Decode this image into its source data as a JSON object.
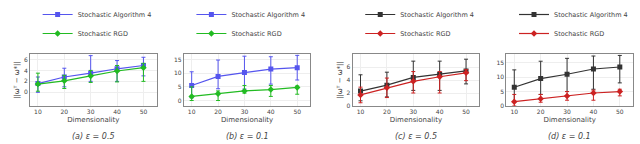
{
  "chart_data": [
    {
      "type": "line",
      "title": "(a) ε = 0.5",
      "xlabel": "Dimensionality",
      "ylabel": "||ωᵀ − ω*||",
      "x": [
        10,
        20,
        30,
        40,
        50
      ],
      "xlim": [
        7,
        55
      ],
      "xticks": [
        10,
        20,
        30,
        40,
        50
      ],
      "ylim": [
        -2.5,
        7
      ],
      "yticks": [
        0,
        2,
        4,
        6
      ],
      "grid": true,
      "legend": "top",
      "series": [
        {
          "name": "Stochastic Algorithm 4",
          "color": "#5555ee",
          "marker": "square",
          "values": [
            1.6,
            2.8,
            3.5,
            4.3,
            4.9
          ],
          "error_minus": [
            1.6,
            1.8,
            1.5,
            2.3,
            1.9
          ],
          "error_plus": [
            1.2,
            1.6,
            3.2,
            1.5,
            1.5
          ]
        },
        {
          "name": "Stochastic RGD",
          "color": "#22bb22",
          "marker": "diamond",
          "values": [
            1.5,
            2.1,
            3.0,
            3.9,
            4.5
          ],
          "error_minus": [
            1.3,
            1.4,
            1.2,
            2.0,
            2.5
          ],
          "error_plus": [
            2.0,
            1.0,
            1.0,
            1.0,
            0.8
          ]
        }
      ]
    },
    {
      "type": "line",
      "title": "(b) ε = 0.1",
      "xlabel": "Dimensionality",
      "x": [
        10,
        20,
        30,
        40,
        50
      ],
      "xlim": [
        7,
        55
      ],
      "xticks": [
        10,
        20,
        30,
        40,
        50
      ],
      "ylim": [
        -2,
        17
      ],
      "yticks": [
        0,
        5,
        10,
        15
      ],
      "grid": true,
      "legend": "top",
      "series": [
        {
          "name": "Stochastic Algorithm 4",
          "color": "#5555ee",
          "marker": "square",
          "values": [
            5.5,
            8.8,
            10.2,
            11.5,
            12.0
          ],
          "error_minus": [
            4.5,
            4.5,
            6.0,
            5.5,
            4.5
          ],
          "error_plus": [
            5.0,
            6.0,
            6.0,
            4.5,
            4.5
          ]
        },
        {
          "name": "Stochastic RGD",
          "color": "#22bb22",
          "marker": "diamond",
          "values": [
            1.5,
            2.5,
            3.5,
            4.0,
            4.8
          ],
          "error_minus": [
            1.5,
            2.5,
            0.8,
            2.5,
            2.5
          ],
          "error_plus": [
            3.5,
            1.0,
            2.0,
            1.5,
            0.5
          ]
        }
      ]
    },
    {
      "type": "line",
      "title": "(c) ε = 0.5",
      "xlabel": "Dimensionality",
      "ylabel": "||ωᵀ − ω*||",
      "x": [
        10,
        20,
        30,
        40,
        50
      ],
      "xlim": [
        7,
        55
      ],
      "xticks": [
        10,
        20,
        30,
        40,
        50
      ],
      "ylim": [
        0,
        8
      ],
      "yticks": [
        0,
        2,
        4,
        6
      ],
      "grid": true,
      "legend": "top",
      "series": [
        {
          "name": "Stochastic Algorithm 4",
          "color": "#333333",
          "marker": "square",
          "values": [
            2.3,
            3.2,
            4.4,
            4.9,
            5.4
          ],
          "error_minus": [
            1.5,
            1.8,
            2.0,
            2.5,
            2.0
          ],
          "error_plus": [
            2.5,
            2.0,
            2.5,
            2.0,
            1.8
          ]
        },
        {
          "name": "Stochastic RGD",
          "color": "#cc2222",
          "marker": "diamond",
          "values": [
            1.7,
            2.8,
            3.8,
            4.5,
            5.1
          ],
          "error_minus": [
            1.2,
            1.5,
            1.8,
            2.5,
            1.2
          ],
          "error_plus": [
            1.2,
            1.5,
            1.5,
            0.8,
            0.5
          ]
        }
      ]
    },
    {
      "type": "line",
      "title": "(d) ε = 0.1",
      "xlabel": "Dimensionality",
      "x": [
        10,
        20,
        30,
        40,
        50
      ],
      "xlim": [
        7,
        55
      ],
      "xticks": [
        10,
        20,
        30,
        40,
        50
      ],
      "ylim": [
        0,
        18
      ],
      "yticks": [
        0,
        5,
        10,
        15
      ],
      "grid": true,
      "legend": "top",
      "series": [
        {
          "name": "Stochastic Algorithm 4",
          "color": "#333333",
          "marker": "square",
          "values": [
            6.5,
            9.5,
            11.0,
            12.8,
            13.5
          ],
          "error_minus": [
            5.0,
            5.5,
            6.0,
            7.0,
            5.5
          ],
          "error_plus": [
            6.0,
            6.0,
            5.5,
            4.5,
            4.0
          ]
        },
        {
          "name": "Stochastic RGD",
          "color": "#cc2222",
          "marker": "diamond",
          "values": [
            1.5,
            2.5,
            3.5,
            4.5,
            5.0
          ],
          "error_minus": [
            1.5,
            1.2,
            1.5,
            2.5,
            1.5
          ],
          "error_plus": [
            2.5,
            1.5,
            1.5,
            1.0,
            0.8
          ]
        }
      ]
    }
  ]
}
